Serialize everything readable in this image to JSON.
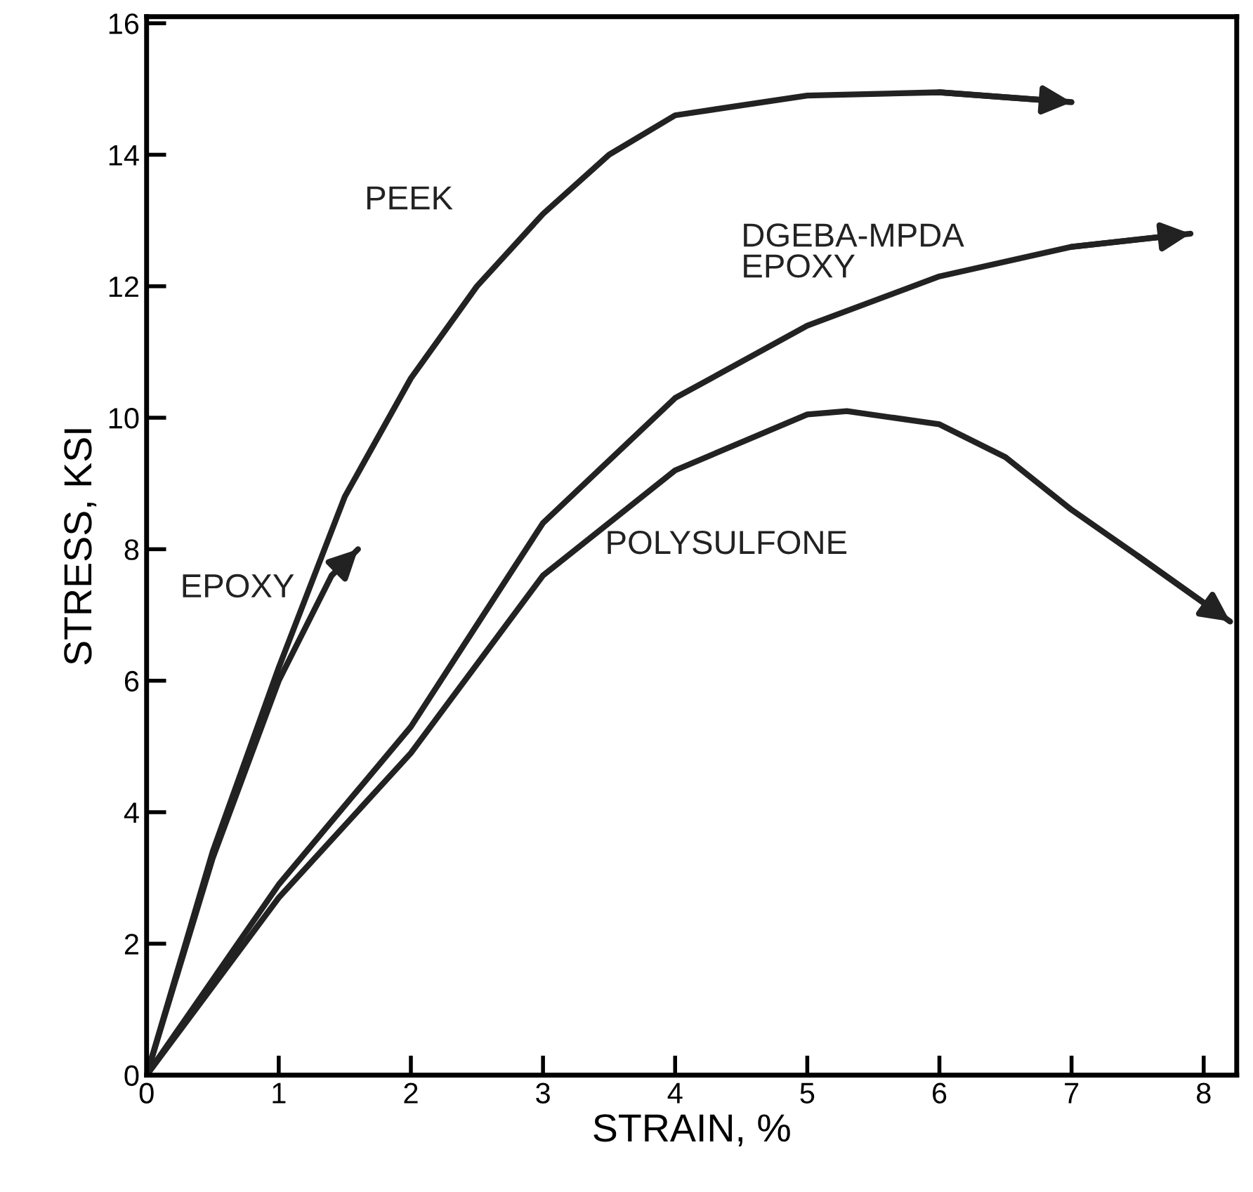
{
  "chart_data": {
    "type": "line",
    "xlabel": "STRAIN, %",
    "ylabel": "STRESS, KSI",
    "xlim": [
      0,
      8.25
    ],
    "ylim": [
      0,
      16.1
    ],
    "xticks": [
      0,
      1,
      2,
      3,
      4,
      5,
      6,
      7,
      8
    ],
    "yticks": [
      0,
      2,
      4,
      6,
      8,
      10,
      12,
      14,
      16
    ],
    "grid": false,
    "marker": "none",
    "line_style": "solid",
    "series": [
      {
        "name": "PEEK",
        "color": "#222222",
        "x": [
          0,
          0.5,
          1,
          1.5,
          2,
          2.5,
          3,
          3.5,
          4,
          5,
          6,
          7
        ],
        "values": [
          0,
          3.4,
          6.2,
          8.8,
          10.6,
          12.0,
          13.1,
          14.0,
          14.6,
          14.9,
          14.95,
          14.8
        ]
      },
      {
        "name": "EPOXY",
        "color": "#222222",
        "x": [
          0,
          0.5,
          1,
          1.4,
          1.6
        ],
        "values": [
          0,
          3.3,
          6.0,
          7.6,
          8.0
        ]
      },
      {
        "name": "DGEBA-MPDA\nEPOXY",
        "color": "#222222",
        "x": [
          0,
          1,
          2,
          3,
          4,
          5,
          6,
          7,
          7.9
        ],
        "values": [
          0,
          2.9,
          5.3,
          8.4,
          10.3,
          11.4,
          12.15,
          12.6,
          12.8
        ]
      },
      {
        "name": "POLYSULFONE",
        "color": "#222222",
        "x": [
          0,
          1,
          2,
          3,
          4,
          5,
          5.3,
          6,
          6.5,
          7,
          7.5,
          8.2
        ],
        "values": [
          0,
          2.7,
          4.9,
          7.6,
          9.2,
          10.05,
          10.1,
          9.9,
          9.4,
          8.6,
          7.9,
          6.9
        ]
      }
    ]
  }
}
